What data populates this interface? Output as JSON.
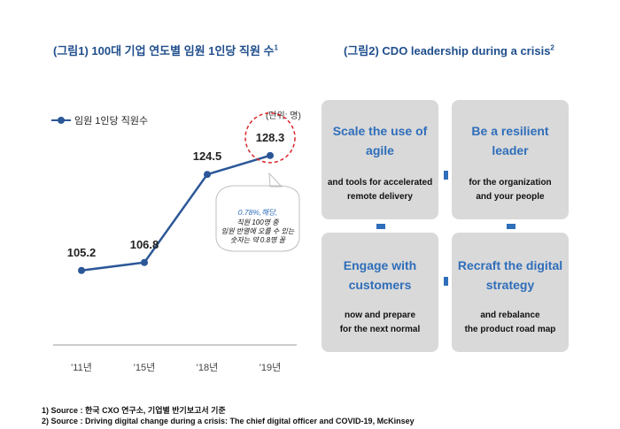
{
  "figure1": {
    "title": "(그림1) 100대 기업 연도별 임원 1인당 직원 수",
    "footnote_mark": "1",
    "legend_label": "임원 1인당 직원수",
    "unit": "(단위: 명)",
    "callout": {
      "highlight": "0.78%,해당,",
      "lines": [
        "직원 100명 중",
        "임원 반열에 오를 수 있는",
        "숫자는 약 0.8명 꼴"
      ]
    }
  },
  "chart_data": {
    "type": "line",
    "categories": [
      "'11년",
      "'15년",
      "'18년",
      "'19년"
    ],
    "series": [
      {
        "name": "임원 1인당 직원수",
        "values": [
          105.2,
          106.8,
          124.5,
          128.3
        ]
      }
    ],
    "data_labels": [
      "105.2",
      "106.8",
      "124.5",
      "128.3"
    ],
    "highlighted_point": "128.3",
    "ylim": [
      100,
      132
    ],
    "xlabel": "",
    "ylabel": ""
  },
  "figure2": {
    "title": "(그림2) CDO leadership during a crisis",
    "footnote_mark": "2",
    "boxes": [
      {
        "head": [
          "Scale the use of",
          "agile"
        ],
        "sub": [
          "and tools for accelerated",
          "remote delivery"
        ]
      },
      {
        "head": [
          "Be a resilient",
          "leader"
        ],
        "sub": [
          "for the organization",
          "and your people"
        ]
      },
      {
        "head": [
          "Engage with",
          "customers"
        ],
        "sub": [
          "now and prepare",
          "for the next normal"
        ]
      },
      {
        "head": [
          "Recraft the digital",
          "strategy"
        ],
        "sub": [
          "and rebalance",
          "the product road map"
        ]
      }
    ]
  },
  "sources": [
    "1) Source : 한국 CXO 연구소, 기업별 반기보고서 기준",
    "2) Source : Driving digital change during a crisis: The chief digital officer and COVID-19, McKinsey"
  ],
  "colors": {
    "accent": "#1f4e8c",
    "line": "#2b5797",
    "box_bg": "#d9d9d9",
    "box_head": "#2f6eba",
    "highlight_ring": "#d9262b"
  }
}
